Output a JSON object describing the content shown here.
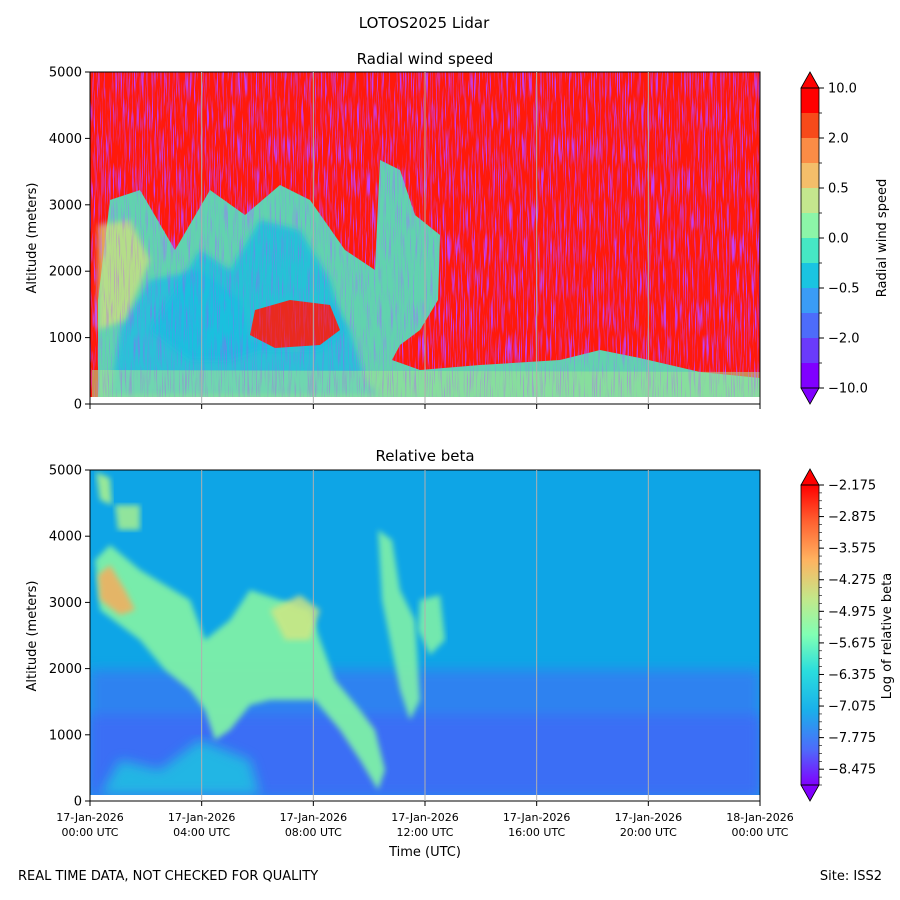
{
  "suptitle": "LOTOS2025 Lidar",
  "footer": {
    "left": "REAL TIME DATA, NOT CHECKED FOR QUALITY",
    "right": "Site: ISS2"
  },
  "chart_data": [
    {
      "type": "heatmap",
      "title": "Radial wind speed",
      "ylabel": "Altitude (meters)",
      "xlabel": "",
      "ylim": [
        0,
        5000
      ],
      "yticks": [
        "0",
        "1000",
        "2000",
        "3000",
        "4000",
        "5000"
      ],
      "x_hours_range": [
        0,
        24
      ],
      "xticks_shown": false,
      "grid": "vertical lines at x ticks",
      "colorbar": {
        "label": "Radial wind speed",
        "extend": "both",
        "tick_labels": [
          "10.0",
          "2.0",
          "0.5",
          "0.0",
          "−0.5",
          "−2.0",
          "−10.0"
        ],
        "levels_top_to_bottom": [
          "#ff0000",
          "#f74a1a",
          "#fb8c46",
          "#f4be6a",
          "#c4e68e",
          "#8cf5a8",
          "#46e8c4",
          "#1ac4e1",
          "#3a9cf6",
          "#4d6cfa",
          "#6a3bfb",
          "#8000ff"
        ]
      },
      "description_regions": [
        {
          "hours": [
            0,
            24
          ],
          "altitude": [
            0,
            5000
          ],
          "dominant": "red / mixed red-purple noise"
        },
        {
          "hours": [
            1,
            10.5
          ],
          "altitude": [
            100,
            3300
          ],
          "dominant": "cyan-green (near 0)"
        },
        {
          "hours": [
            10.5,
            24
          ],
          "altitude": [
            100,
            600
          ],
          "dominant": "green-orange (near 0)"
        }
      ]
    },
    {
      "type": "heatmap",
      "title": "Relative beta",
      "ylabel": "Altitude (meters)",
      "xlabel": "Time (UTC)",
      "ylim": [
        0,
        5000
      ],
      "yticks": [
        "0",
        "1000",
        "2000",
        "3000",
        "4000",
        "5000"
      ],
      "xticks": [
        {
          "date": "17-Jan-2026",
          "time": "00:00 UTC"
        },
        {
          "date": "17-Jan-2026",
          "time": "04:00 UTC"
        },
        {
          "date": "17-Jan-2026",
          "time": "08:00 UTC"
        },
        {
          "date": "17-Jan-2026",
          "time": "12:00 UTC"
        },
        {
          "date": "17-Jan-2026",
          "time": "16:00 UTC"
        },
        {
          "date": "17-Jan-2026",
          "time": "20:00 UTC"
        },
        {
          "date": "18-Jan-2026",
          "time": "00:00 UTC"
        }
      ],
      "grid": "vertical lines at x ticks",
      "colorbar": {
        "label": "Log of relative beta",
        "extend": "both",
        "tick_labels": [
          "−2.175",
          "−2.875",
          "−3.575",
          "−4.275",
          "−4.975",
          "−5.675",
          "−6.375",
          "−7.075",
          "−7.775",
          "−8.475"
        ],
        "vmin": -8.825,
        "vmax": -2.175
      },
      "description_regions": [
        {
          "hours": [
            0,
            24
          ],
          "altitude": [
            1500,
            5000
          ],
          "value": -7.3,
          "color": "#0ea5e6"
        },
        {
          "hours": [
            0,
            24
          ],
          "altitude": [
            100,
            1500
          ],
          "value": -8.0,
          "color": "#3b6ef5"
        },
        {
          "hours": [
            0.5,
            11.5
          ],
          "altitude": [
            800,
            3800
          ],
          "value": -5.8,
          "color": "#7ef0a8",
          "note": "aerosol layer"
        },
        {
          "hours": [
            0.2,
            1.8
          ],
          "altitude": [
            4000,
            5000
          ],
          "value": -5.9,
          "color": "#9ff09a"
        }
      ]
    }
  ]
}
